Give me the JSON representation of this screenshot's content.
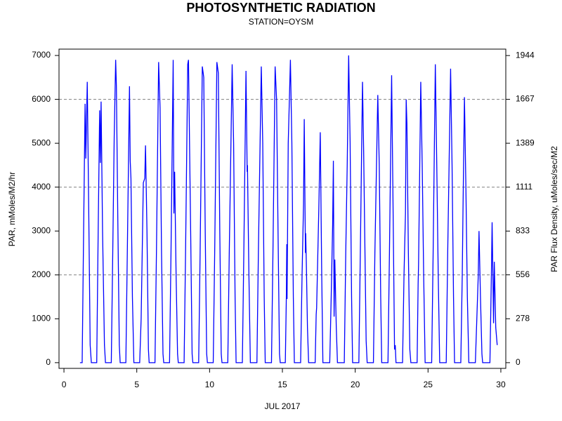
{
  "chart_data": {
    "type": "line",
    "title": "PHOTOSYNTHETIC RADIATION",
    "subtitle": "STATION=OYSM",
    "x_label": "JUL 2017",
    "y_label": "PAR, mMoles/M2/hr",
    "y2_label": "PAR Flux Density, uMoles/sec/M2",
    "color": "#0000ff",
    "grid_color": "#808080",
    "xlim": [
      -0.34,
      30.34
    ],
    "ylim": [
      -130,
      7145
    ],
    "y2lim": [
      -36.1,
      1984.7
    ],
    "xticks": [
      0,
      5,
      10,
      15,
      20,
      25,
      30
    ],
    "yticks": [
      0,
      1000,
      2000,
      3000,
      4000,
      5000,
      6000,
      7000
    ],
    "y2ticks": [
      0,
      278,
      556,
      833,
      1111,
      1389,
      1667,
      1944
    ],
    "ygrid": [
      2000,
      4000,
      6000
    ],
    "x": [
      1.1,
      1.25,
      1.35,
      1.45,
      1.5,
      1.6,
      1.7,
      1.8,
      1.88,
      2.25,
      2.35,
      2.45,
      2.5,
      2.55,
      2.65,
      2.78,
      2.85,
      3.25,
      3.35,
      3.45,
      3.55,
      3.6,
      3.7,
      3.8,
      3.86,
      4.25,
      4.35,
      4.5,
      4.55,
      4.6,
      4.7,
      4.8,
      5.2,
      5.3,
      5.45,
      5.55,
      5.6,
      5.7,
      5.8,
      5.85,
      6.25,
      6.35,
      6.5,
      6.6,
      6.7,
      6.8,
      6.85,
      7.25,
      7.35,
      7.5,
      7.55,
      7.6,
      7.7,
      7.8,
      7.85,
      8.25,
      8.35,
      8.5,
      8.55,
      8.7,
      8.8,
      8.85,
      9.25,
      9.35,
      9.5,
      9.6,
      9.7,
      9.8,
      9.85,
      10.25,
      10.35,
      10.5,
      10.6,
      10.7,
      10.8,
      10.85,
      11.25,
      11.35,
      11.55,
      11.65,
      11.75,
      11.82,
      12.25,
      12.35,
      12.5,
      12.58,
      12.6,
      12.7,
      12.8,
      13.25,
      13.35,
      13.55,
      13.65,
      13.75,
      13.82,
      14.25,
      14.35,
      14.5,
      14.6,
      14.7,
      14.8,
      14.85,
      15.2,
      15.27,
      15.3,
      15.32,
      15.4,
      15.55,
      15.65,
      15.75,
      15.82,
      16.25,
      16.35,
      16.45,
      16.5,
      16.58,
      16.6,
      16.65,
      16.72,
      16.8,
      17.25,
      17.32,
      17.35,
      17.5,
      17.6,
      17.7,
      17.78,
      18.25,
      18.35,
      18.45,
      18.5,
      18.55,
      18.6,
      18.7,
      18.78,
      19.25,
      19.35,
      19.45,
      19.55,
      19.65,
      19.75,
      19.82,
      20.25,
      20.35,
      20.5,
      20.58,
      20.65,
      20.75,
      20.82,
      21.25,
      21.35,
      21.55,
      21.65,
      21.75,
      21.82,
      22.25,
      22.35,
      22.5,
      22.6,
      22.7,
      22.75,
      22.8,
      23.25,
      23.35,
      23.45,
      23.5,
      23.55,
      23.65,
      23.75,
      23.82,
      24.25,
      24.32,
      24.35,
      24.5,
      24.6,
      24.7,
      24.8,
      25.25,
      25.35,
      25.5,
      25.6,
      25.7,
      25.8,
      26.25,
      26.35,
      26.55,
      26.65,
      26.75,
      26.82,
      27.25,
      27.35,
      27.4,
      27.5,
      27.6,
      27.7,
      27.8,
      28.25,
      28.35,
      28.45,
      28.5,
      28.6,
      28.7,
      28.75,
      29.25,
      29.35,
      29.4,
      29.5,
      29.55,
      29.65,
      29.75
    ],
    "values": [
      0,
      0,
      3000,
      5900,
      4650,
      6400,
      3500,
      400,
      0,
      0,
      3000,
      5750,
      4550,
      5950,
      3000,
      400,
      0,
      0,
      2500,
      5150,
      6900,
      6300,
      3200,
      400,
      0,
      0,
      2500,
      6300,
      4600,
      4200,
      1500,
      0,
      0,
      1000,
      4100,
      4200,
      4950,
      3000,
      300,
      0,
      0,
      2500,
      6850,
      5800,
      2500,
      200,
      0,
      0,
      2500,
      6900,
      3400,
      4350,
      2000,
      200,
      0,
      0,
      2500,
      6800,
      6900,
      3000,
      200,
      0,
      0,
      2500,
      6750,
      6500,
      3000,
      200,
      0,
      0,
      2500,
      6850,
      6600,
      3000,
      200,
      0,
      0,
      2500,
      6800,
      5000,
      1500,
      0,
      0,
      2500,
      6650,
      4350,
      4500,
      2000,
      0,
      0,
      2500,
      6750,
      5000,
      1500,
      0,
      0,
      2500,
      6750,
      6000,
      3000,
      200,
      0,
      0,
      1500,
      2700,
      1450,
      5000,
      6900,
      5000,
      1500,
      0,
      0,
      2000,
      3600,
      5550,
      2500,
      2950,
      2150,
      800,
      0,
      0,
      1100,
      1250,
      3500,
      5250,
      2000,
      0,
      0,
      1500,
      3150,
      4600,
      1050,
      2350,
      800,
      0,
      0,
      2500,
      4500,
      7000,
      5000,
      1500,
      0,
      0,
      2500,
      6400,
      4800,
      3000,
      500,
      0,
      0,
      2500,
      6100,
      4500,
      1500,
      0,
      0,
      2500,
      6550,
      3500,
      300,
      400,
      0,
      0,
      2000,
      3400,
      6000,
      5450,
      2500,
      300,
      0,
      0,
      1800,
      2250,
      6400,
      4500,
      2000,
      0,
      0,
      2500,
      6800,
      4500,
      2000,
      0,
      0,
      2500,
      6700,
      4500,
      1500,
      0,
      0,
      2000,
      3450,
      6050,
      4000,
      1500,
      0,
      0,
      1000,
      2000,
      3000,
      1500,
      200,
      0,
      0,
      2000,
      3200,
      900,
      2300,
      800,
      400
    ]
  }
}
